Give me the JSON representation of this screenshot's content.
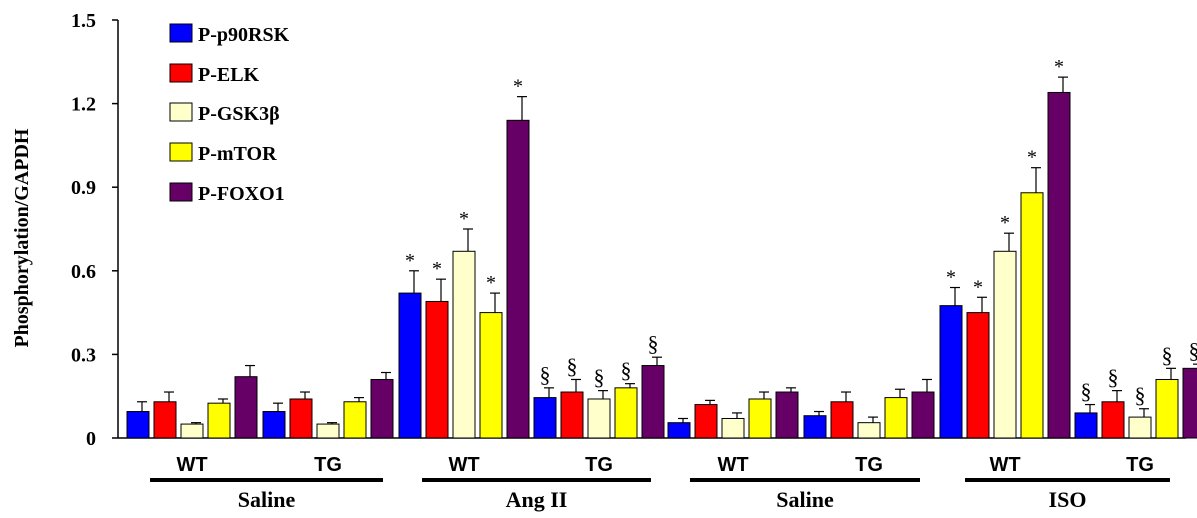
{
  "chart_data": {
    "type": "bar",
    "ylabel": "Phosphorylation/GAPDH",
    "ylim": [
      0,
      1.5
    ],
    "yticks": [
      "0",
      "0.3",
      "0.6",
      "0.9",
      "1.2",
      "1.5"
    ],
    "ytick_values": [
      0,
      0.3,
      0.6,
      0.9,
      1.2,
      1.5
    ],
    "legend_position": "top-left",
    "series": [
      {
        "name": "P-p90RSK",
        "color": "#0000ff"
      },
      {
        "name": "P-ELK",
        "color": "#ff0000"
      },
      {
        "name": "P-GSK3β",
        "color": "#ffffcc"
      },
      {
        "name": "P-mTOR",
        "color": "#ffff00"
      },
      {
        "name": "P-FOXO1",
        "color": "#660066"
      }
    ],
    "groups": [
      {
        "label": "WT",
        "values": [
          0.095,
          0.13,
          0.05,
          0.125,
          0.22
        ],
        "errors": [
          0.035,
          0.035,
          0.005,
          0.015,
          0.04
        ],
        "marks": [
          "",
          "",
          "",
          "",
          ""
        ]
      },
      {
        "label": "TG",
        "values": [
          0.095,
          0.14,
          0.05,
          0.13,
          0.21
        ],
        "errors": [
          0.03,
          0.025,
          0.005,
          0.015,
          0.025
        ],
        "marks": [
          "",
          "",
          "",
          "",
          ""
        ]
      },
      {
        "label": "WT",
        "values": [
          0.52,
          0.49,
          0.67,
          0.45,
          1.14
        ],
        "errors": [
          0.08,
          0.08,
          0.08,
          0.07,
          0.085
        ],
        "marks": [
          "*",
          "*",
          "*",
          "*",
          "*"
        ]
      },
      {
        "label": "TG",
        "values": [
          0.145,
          0.165,
          0.14,
          0.18,
          0.26
        ],
        "errors": [
          0.035,
          0.045,
          0.03,
          0.015,
          0.03
        ],
        "marks": [
          "§",
          "§",
          "§",
          "§",
          "§"
        ]
      },
      {
        "label": "WT",
        "values": [
          0.055,
          0.12,
          0.07,
          0.14,
          0.165
        ],
        "errors": [
          0.015,
          0.015,
          0.02,
          0.025,
          0.015
        ],
        "marks": [
          "",
          "",
          "",
          "",
          ""
        ]
      },
      {
        "label": "TG",
        "values": [
          0.08,
          0.13,
          0.055,
          0.145,
          0.165
        ],
        "errors": [
          0.015,
          0.035,
          0.02,
          0.03,
          0.045
        ],
        "marks": [
          "",
          "",
          "",
          "",
          ""
        ]
      },
      {
        "label": "WT",
        "values": [
          0.475,
          0.45,
          0.67,
          0.88,
          1.24
        ],
        "errors": [
          0.065,
          0.055,
          0.065,
          0.09,
          0.055
        ],
        "marks": [
          "*",
          "*",
          "*",
          "*",
          "*"
        ]
      },
      {
        "label": "TG",
        "values": [
          0.09,
          0.13,
          0.075,
          0.21,
          0.25
        ],
        "errors": [
          0.03,
          0.04,
          0.03,
          0.04,
          0.015
        ],
        "marks": [
          "§",
          "§",
          "§",
          "§",
          "§"
        ]
      }
    ],
    "treatments": [
      "Saline",
      "Ang II",
      "Saline",
      "ISO"
    ]
  }
}
